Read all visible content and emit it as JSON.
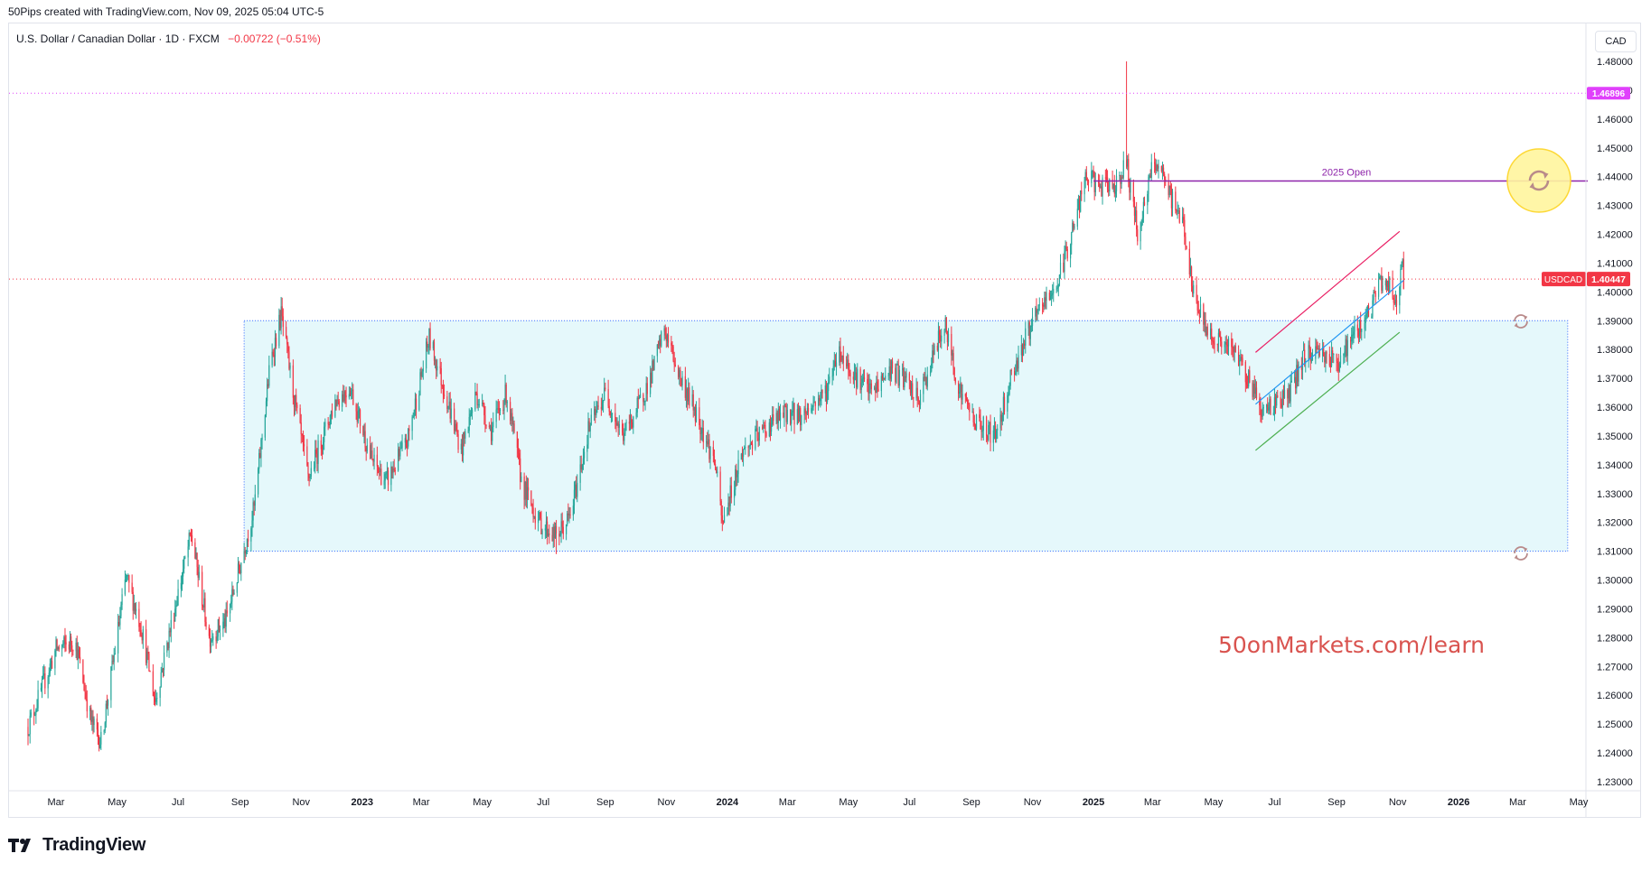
{
  "header": {
    "credit": "50Pips created with TradingView.com, Nov 09, 2025 05:04 UTC-5",
    "symbol_line": "U.S. Dollar / Canadian Dollar · 1D · FXCM",
    "change": "−0.00722 (−0.51%)",
    "currency": "CAD"
  },
  "branding": {
    "logo_text": "TradingView",
    "watermark": "50onMarkets.com/learn"
  },
  "colors": {
    "up": "#26a69a",
    "down": "#f23645",
    "box_fill": "#e0f7fa",
    "box_border": "#2962ff",
    "open_line": "#8e24aa",
    "channel_upper": "#e91e63",
    "channel_lower": "#4caf50",
    "channel_mid": "#2196f3",
    "level_line": "#e040fb",
    "price_badge": "#f23645"
  },
  "chart_data": {
    "type": "candlestick",
    "title": "U.S. Dollar / Canadian Dollar · 1D · FXCM",
    "ylim": [
      1.225,
      1.485
    ],
    "y_ticks": [
      "1.48000",
      "1.47000",
      "1.46000",
      "1.45000",
      "1.44000",
      "1.43000",
      "1.42000",
      "1.41000",
      "1.40000",
      "1.39000",
      "1.38000",
      "1.37000",
      "1.36000",
      "1.35000",
      "1.34000",
      "1.33000",
      "1.32000",
      "1.31000",
      "1.30000",
      "1.29000",
      "1.28000",
      "1.27000",
      "1.26000",
      "1.25000",
      "1.24000",
      "1.23000"
    ],
    "x_labels": [
      {
        "t": "2022-03-01",
        "label": "Mar",
        "bold": false
      },
      {
        "t": "2022-05-01",
        "label": "May",
        "bold": false
      },
      {
        "t": "2022-07-01",
        "label": "Jul",
        "bold": false
      },
      {
        "t": "2022-09-01",
        "label": "Sep",
        "bold": false
      },
      {
        "t": "2022-11-01",
        "label": "Nov",
        "bold": false
      },
      {
        "t": "2023-01-01",
        "label": "2023",
        "bold": true
      },
      {
        "t": "2023-03-01",
        "label": "Mar",
        "bold": false
      },
      {
        "t": "2023-05-01",
        "label": "May",
        "bold": false
      },
      {
        "t": "2023-07-01",
        "label": "Jul",
        "bold": false
      },
      {
        "t": "2023-09-01",
        "label": "Sep",
        "bold": false
      },
      {
        "t": "2023-11-01",
        "label": "Nov",
        "bold": false
      },
      {
        "t": "2024-01-01",
        "label": "2024",
        "bold": true
      },
      {
        "t": "2024-03-01",
        "label": "Mar",
        "bold": false
      },
      {
        "t": "2024-05-01",
        "label": "May",
        "bold": false
      },
      {
        "t": "2024-07-01",
        "label": "Jul",
        "bold": false
      },
      {
        "t": "2024-09-01",
        "label": "Sep",
        "bold": false
      },
      {
        "t": "2024-11-01",
        "label": "Nov",
        "bold": false
      },
      {
        "t": "2025-01-01",
        "label": "2025",
        "bold": true
      },
      {
        "t": "2025-03-01",
        "label": "Mar",
        "bold": false
      },
      {
        "t": "2025-05-01",
        "label": "May",
        "bold": false
      },
      {
        "t": "2025-07-01",
        "label": "Jul",
        "bold": false
      },
      {
        "t": "2025-09-01",
        "label": "Sep",
        "bold": false
      },
      {
        "t": "2025-11-01",
        "label": "Nov",
        "bold": false
      },
      {
        "t": "2026-01-01",
        "label": "2026",
        "bold": true
      },
      {
        "t": "2026-03-01",
        "label": "Mar",
        "bold": false
      },
      {
        "t": "2026-05-01",
        "label": "May",
        "bold": false
      }
    ],
    "series": [
      {
        "name": "USDCAD",
        "anchors": [
          [
            "2022-02-01",
            1.249
          ],
          [
            "2022-03-01",
            1.276
          ],
          [
            "2022-03-20",
            1.279
          ],
          [
            "2022-04-05",
            1.251
          ],
          [
            "2022-04-15",
            1.244
          ],
          [
            "2022-05-10",
            1.301
          ],
          [
            "2022-05-25",
            1.284
          ],
          [
            "2022-06-08",
            1.258
          ],
          [
            "2022-06-30",
            1.294
          ],
          [
            "2022-07-14",
            1.316
          ],
          [
            "2022-08-01",
            1.28
          ],
          [
            "2022-08-18",
            1.286
          ],
          [
            "2022-09-01",
            1.305
          ],
          [
            "2022-09-15",
            1.325
          ],
          [
            "2022-10-01",
            1.375
          ],
          [
            "2022-10-12",
            1.392
          ],
          [
            "2022-10-25",
            1.363
          ],
          [
            "2022-11-08",
            1.335
          ],
          [
            "2022-11-22",
            1.349
          ],
          [
            "2022-12-05",
            1.362
          ],
          [
            "2022-12-20",
            1.367
          ],
          [
            "2023-01-10",
            1.342
          ],
          [
            "2023-01-25",
            1.334
          ],
          [
            "2023-02-15",
            1.348
          ],
          [
            "2023-03-09",
            1.384
          ],
          [
            "2023-03-25",
            1.365
          ],
          [
            "2023-04-10",
            1.345
          ],
          [
            "2023-04-25",
            1.365
          ],
          [
            "2023-05-10",
            1.352
          ],
          [
            "2023-05-25",
            1.365
          ],
          [
            "2023-06-10",
            1.333
          ],
          [
            "2023-06-27",
            1.32
          ],
          [
            "2023-07-14",
            1.315
          ],
          [
            "2023-07-28",
            1.322
          ],
          [
            "2023-08-15",
            1.352
          ],
          [
            "2023-09-01",
            1.365
          ],
          [
            "2023-09-18",
            1.35
          ],
          [
            "2023-10-01",
            1.358
          ],
          [
            "2023-10-15",
            1.369
          ],
          [
            "2023-10-30",
            1.387
          ],
          [
            "2023-11-15",
            1.37
          ],
          [
            "2023-12-01",
            1.358
          ],
          [
            "2023-12-20",
            1.34
          ],
          [
            "2023-12-27",
            1.319
          ],
          [
            "2024-01-15",
            1.344
          ],
          [
            "2024-02-01",
            1.35
          ],
          [
            "2024-02-15",
            1.355
          ],
          [
            "2024-03-01",
            1.358
          ],
          [
            "2024-03-15",
            1.357
          ],
          [
            "2024-04-10",
            1.366
          ],
          [
            "2024-04-20",
            1.38
          ],
          [
            "2024-05-10",
            1.37
          ],
          [
            "2024-05-25",
            1.365
          ],
          [
            "2024-06-12",
            1.373
          ],
          [
            "2024-06-25",
            1.37
          ],
          [
            "2024-07-10",
            1.362
          ],
          [
            "2024-07-25",
            1.378
          ],
          [
            "2024-08-05",
            1.389
          ],
          [
            "2024-08-20",
            1.366
          ],
          [
            "2024-09-05",
            1.355
          ],
          [
            "2024-09-25",
            1.35
          ],
          [
            "2024-10-10",
            1.37
          ],
          [
            "2024-10-25",
            1.384
          ],
          [
            "2024-11-10",
            1.395
          ],
          [
            "2024-11-25",
            1.402
          ],
          [
            "2024-12-10",
            1.42
          ],
          [
            "2024-12-25",
            1.44
          ],
          [
            "2025-01-10",
            1.436
          ],
          [
            "2025-01-25",
            1.438
          ],
          [
            "2025-02-03",
            1.445
          ],
          [
            "2025-02-14",
            1.42
          ],
          [
            "2025-03-03",
            1.446
          ],
          [
            "2025-03-20",
            1.432
          ],
          [
            "2025-04-01",
            1.424
          ],
          [
            "2025-04-10",
            1.4
          ],
          [
            "2025-04-25",
            1.386
          ],
          [
            "2025-05-10",
            1.382
          ],
          [
            "2025-05-25",
            1.378
          ],
          [
            "2025-06-10",
            1.366
          ],
          [
            "2025-06-20",
            1.358
          ],
          [
            "2025-07-01",
            1.362
          ],
          [
            "2025-07-15",
            1.364
          ],
          [
            "2025-07-31",
            1.378
          ],
          [
            "2025-08-15",
            1.38
          ],
          [
            "2025-09-01",
            1.375
          ],
          [
            "2025-09-20",
            1.386
          ],
          [
            "2025-10-05",
            1.394
          ],
          [
            "2025-10-15",
            1.404
          ],
          [
            "2025-10-25",
            1.402
          ],
          [
            "2025-10-31",
            1.395
          ],
          [
            "2025-11-05",
            1.411
          ],
          [
            "2025-11-07",
            1.40447
          ]
        ],
        "wick_spikes": [
          {
            "t": "2025-02-03",
            "high": 1.48
          },
          {
            "t": "2022-10-13",
            "high": 1.398
          },
          {
            "t": "2023-07-14",
            "low": 1.309
          },
          {
            "t": "2023-12-27",
            "low": 1.317
          }
        ]
      }
    ],
    "last_price": "1.40447",
    "last_label": "USDCAD",
    "level_price": "1.46896",
    "annotations": [
      {
        "type": "hline",
        "name": "2025 Open",
        "y": 1.4385,
        "t_start": "2025-01-01",
        "t_end": "2026-05-10"
      },
      {
        "type": "hline_dotted",
        "y": 1.46896
      },
      {
        "type": "hline_dotted",
        "y": 1.40447
      },
      {
        "type": "range_box",
        "t_start": "2022-09-05",
        "t_end": "2026-04-20",
        "y_low": 1.31,
        "y_high": 1.39
      },
      {
        "type": "trendline",
        "role": "channel_upper",
        "t0": "2025-06-12",
        "y0": 1.379,
        "t1": "2025-11-03",
        "y1": 1.421
      },
      {
        "type": "trendline",
        "role": "channel_lower",
        "t0": "2025-06-12",
        "y0": 1.345,
        "t1": "2025-11-03",
        "y1": 1.386
      },
      {
        "type": "trendline",
        "role": "channel_mid",
        "t0": "2025-06-12",
        "y0": 1.361,
        "t1": "2025-11-07",
        "y1": 1.404
      }
    ]
  }
}
